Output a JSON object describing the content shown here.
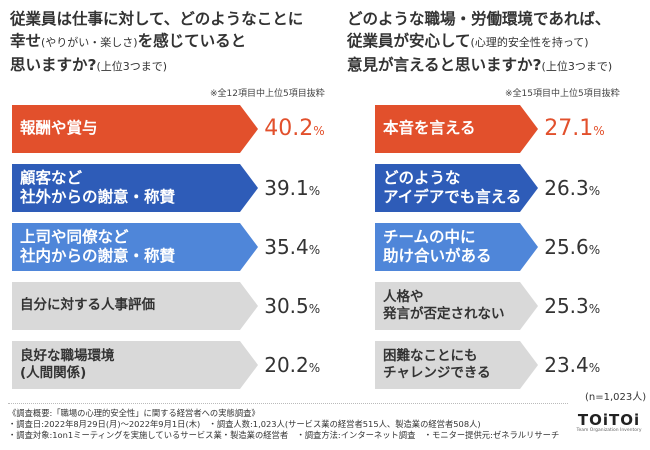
{
  "left": {
    "question": [
      "従業員は仕事に対して、どのようなことに",
      "幸せ",
      "(やりがい・楽しさ)",
      "を感じていると",
      "思いますか?",
      "(上位3つまで)"
    ],
    "note": "※全12項目中上位5項目抜粋",
    "items": [
      {
        "label": [
          "報酬や賞与"
        ],
        "value": "40.2",
        "fill": 1.0
      },
      {
        "label": [
          "顧客など",
          "社外からの謝意・称賛"
        ],
        "value": "39.1",
        "fill": 1.0
      },
      {
        "label": [
          "上司や同僚など",
          "社内からの謝意・称賛"
        ],
        "value": "35.4",
        "fill": 1.0
      },
      {
        "label": [
          "自分に対する人事評価"
        ],
        "value": "30.5",
        "fill": 1.0
      },
      {
        "label": [
          "良好な職場環境",
          "(人間関係)"
        ],
        "value": "20.2",
        "fill": 1.0
      }
    ]
  },
  "right": {
    "question": [
      "どのような職場・労働環境であれば、",
      "従業員が安心して",
      "(心理的安全性を持って)",
      "意見が言えると思いますか?",
      "(上位3つまで)"
    ],
    "note": "※全15項目中上位5項目抜粋",
    "items": [
      {
        "label": [
          "本音を言える"
        ],
        "value": "27.1",
        "fill": 1.0
      },
      {
        "label": [
          "どのような",
          "アイデアでも言える"
        ],
        "value": "26.3",
        "fill": 1.0
      },
      {
        "label": [
          "チームの中に",
          "助け合いがある"
        ],
        "value": "25.6",
        "fill": 1.0
      },
      {
        "label": [
          "人格や",
          "発言が否定されない"
        ],
        "value": "25.3",
        "fill": 1.0
      },
      {
        "label": [
          "困難なことにも",
          "チャレンジできる"
        ],
        "value": "23.4",
        "fill": 1.0
      }
    ],
    "n_note": "(n=1,023人)"
  },
  "percent_sign": "%",
  "colors": {
    "rank1": "#e2502c",
    "rank2": "#2e5cb8",
    "rank3": "#4f86d9",
    "rank_other": "#d9d9d9",
    "text_dark": "#333333",
    "text_light": "#ffffff"
  },
  "chart_data": [
    {
      "type": "bar",
      "title": "従業員は仕事に対して、どのようなことに幸せ(やりがい・楽しさ)を感じていると思いますか?(上位3つまで)",
      "categories": [
        "報酬や賞与",
        "顧客など社外からの謝意・称賛",
        "上司や同僚など社内からの謝意・称賛",
        "自分に対する人事評価",
        "良好な職場環境(人間関係)"
      ],
      "values": [
        40.2,
        39.1,
        35.4,
        30.5,
        20.2
      ],
      "unit": "%"
    },
    {
      "type": "bar",
      "title": "どのような職場・労働環境であれば、従業員が安心して(心理的安全性を持って)意見が言えると思いますか?(上位3つまで)",
      "categories": [
        "本音を言える",
        "どのようなアイデアでも言える",
        "チームの中に助け合いがある",
        "人格や発言が否定されない",
        "困難なことにもチャレンジできる"
      ],
      "values": [
        27.1,
        26.3,
        25.6,
        25.3,
        23.4
      ],
      "unit": "%"
    }
  ],
  "footer": {
    "lines": [
      "《調査概要:「職場の心理的安全性」に関する経営者への実態調査》",
      "・調査日:2022年8月29日(月)〜2022年9月1日(木)　・調査人数:1,023人(サービス業の経営者515人、製造業の経営者508人)",
      "・調査対象:1on1ミーティングを実施しているサービス業・製造業の経営者　・調査方法:インターネット調査　・モニター提供元:ゼネラルリサーチ"
    ]
  },
  "logo": {
    "main": "TOiTOi",
    "sub": "Team Organization Inventory"
  }
}
